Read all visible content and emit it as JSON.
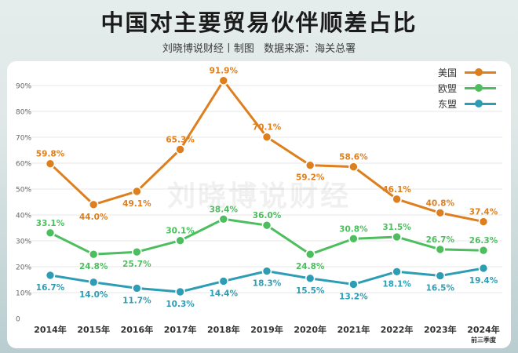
{
  "header": {
    "title": "中国对主要贸易伙伴顺差占比",
    "subtitle_author": "刘晓博说财经丨制图",
    "subtitle_source": "数据来源：海关总署"
  },
  "watermark": "刘晓博说财经",
  "colors": {
    "usa": "#dd7f1e",
    "eu": "#4cbe5e",
    "asean": "#2c9db4",
    "grid": "#e7e7e7",
    "axis_text": "#666666"
  },
  "chart_data": {
    "type": "line",
    "title": "中国对主要贸易伙伴顺差占比",
    "categories": [
      "2014年",
      "2015年",
      "2016年",
      "2017年",
      "2018年",
      "2019年",
      "2020年",
      "2021年",
      "2022年",
      "2023年",
      "2024年"
    ],
    "category_note": {
      "index": 10,
      "text": "前三季度"
    },
    "ylim": [
      0,
      100
    ],
    "yticks": [
      "0",
      "10%",
      "20%",
      "30%",
      "40%",
      "50%",
      "60%",
      "70%",
      "80%",
      "90%"
    ],
    "grid": true,
    "legend_position": "top-right",
    "series": [
      {
        "name": "美国",
        "color": "#dd7f1e",
        "values": [
          59.8,
          44.0,
          49.1,
          65.3,
          91.9,
          70.1,
          59.2,
          58.6,
          46.1,
          40.8,
          37.4
        ],
        "labels": [
          "59.8%",
          "44.0%",
          "49.1%",
          "65.3%",
          "91.9%",
          "70.1%",
          "59.2%",
          "58.6%",
          "46.1%",
          "40.8%",
          "37.4%"
        ]
      },
      {
        "name": "欧盟",
        "color": "#4cbe5e",
        "values": [
          33.1,
          24.8,
          25.7,
          30.1,
          38.4,
          36.0,
          24.8,
          30.8,
          31.5,
          26.7,
          26.3
        ],
        "labels": [
          "33.1%",
          "24.8%",
          "25.7%",
          "30.1%",
          "38.4%",
          "36.0%",
          "24.8%",
          "30.8%",
          "31.5%",
          "26.7%",
          "26.3%"
        ]
      },
      {
        "name": "东盟",
        "color": "#2c9db4",
        "values": [
          16.7,
          14.0,
          11.7,
          10.3,
          14.4,
          18.3,
          15.5,
          13.2,
          18.1,
          16.5,
          19.4
        ],
        "labels": [
          "16.7%",
          "14.0%",
          "11.7%",
          "10.3%",
          "14.4%",
          "18.3%",
          "15.5%",
          "13.2%",
          "18.1%",
          "16.5%",
          "19.4%"
        ]
      }
    ]
  }
}
